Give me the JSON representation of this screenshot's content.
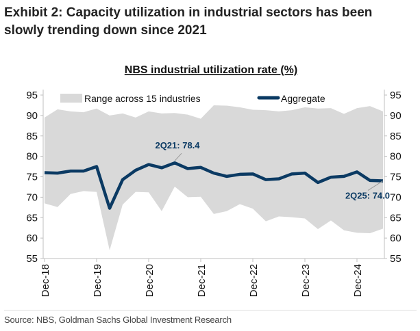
{
  "header": {
    "title": "Exhibit 2: Capacity utilization in industrial sectors has been slowly trending down since 2021"
  },
  "footer": {
    "source": "Source: NBS, Goldman Sachs Global Investment Research"
  },
  "colors": {
    "aggregate": "#0b3a63",
    "range": "#d9d9d9",
    "axis": "#bfbfbf"
  },
  "chart_data": {
    "type": "line",
    "title": "NBS industrial utilization rate (%)",
    "xlabel": "",
    "ylabel": "",
    "ylim": [
      55,
      95
    ],
    "yticks": [
      55,
      60,
      65,
      70,
      75,
      80,
      85,
      90,
      95
    ],
    "xtick_labels": [
      "Dec-18",
      "Dec-19",
      "Dec-20",
      "Dec-21",
      "Dec-22",
      "Dec-23",
      "Dec-24"
    ],
    "xtick_indices": [
      0,
      4,
      8,
      12,
      16,
      20,
      24
    ],
    "x": [
      "4Q18",
      "1Q19",
      "2Q19",
      "3Q19",
      "4Q19",
      "1Q20",
      "2Q20",
      "3Q20",
      "4Q20",
      "1Q21",
      "2Q21",
      "3Q21",
      "4Q21",
      "1Q22",
      "2Q22",
      "3Q22",
      "4Q22",
      "1Q23",
      "2Q23",
      "3Q23",
      "4Q23",
      "1Q24",
      "2Q24",
      "3Q24",
      "4Q24",
      "1Q25",
      "2Q25"
    ],
    "legend": {
      "placement": "top",
      "entries": [
        "Range across 15 industries",
        "Aggregate"
      ]
    },
    "series": [
      {
        "name": "Aggregate",
        "type": "line",
        "values": [
          76.0,
          75.9,
          76.4,
          76.4,
          77.5,
          67.3,
          74.3,
          76.6,
          78.0,
          77.2,
          78.4,
          77.0,
          77.3,
          75.9,
          75.1,
          75.6,
          75.7,
          74.3,
          74.5,
          75.7,
          75.9,
          73.6,
          74.9,
          75.1,
          76.2,
          74.1,
          74.0
        ]
      },
      {
        "name": "Range across 15 industries",
        "type": "area-range",
        "upper": [
          89.5,
          91.5,
          91.0,
          90.8,
          91.7,
          90.0,
          90.5,
          89.5,
          91.0,
          90.5,
          90.6,
          90.2,
          89.2,
          92.5,
          92.4,
          92.0,
          91.4,
          91.3,
          91.0,
          91.3,
          92.0,
          91.7,
          91.8,
          90.4,
          91.8,
          92.3,
          91.0
        ],
        "lower": [
          68.5,
          67.6,
          70.8,
          71.5,
          71.3,
          57.0,
          68.2,
          71.3,
          71.2,
          66.6,
          72.6,
          70.0,
          70.1,
          65.9,
          66.6,
          68.3,
          67.2,
          64.1,
          65.3,
          65.1,
          64.8,
          62.2,
          64.3,
          61.9,
          61.3,
          61.2,
          62.3
        ]
      }
    ],
    "annotations": [
      {
        "text": "2Q21: 78.4",
        "x": "2Q21",
        "y": 78.4
      },
      {
        "text": "2Q25: 74.0",
        "x": "2Q25",
        "y": 74.0
      }
    ]
  }
}
